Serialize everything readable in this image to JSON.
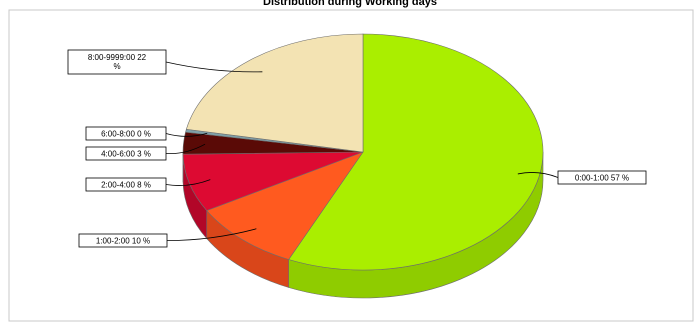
{
  "chart_data": {
    "type": "pie",
    "title": "Distribution during Working days",
    "slices": [
      {
        "label": "0:00-1:00",
        "percent_label": "57 %",
        "value": 57,
        "color": "#aaee00",
        "side": "#8fcc00"
      },
      {
        "label": "1:00-2:00",
        "percent_label": "10 %",
        "value": 10,
        "color": "#ff5a1f",
        "side": "#d9461a"
      },
      {
        "label": "2:00-4:00",
        "percent_label": "8 %",
        "value": 8,
        "color": "#dd0a32",
        "side": "#b20628"
      },
      {
        "label": "4:00-6:00",
        "percent_label": "3 %",
        "value": 3,
        "color": "#5a0a06",
        "side": "#3a0604"
      },
      {
        "label": "6:00-8:00",
        "percent_label": "0 %",
        "value": 0.4,
        "color": "#7fa0a8",
        "side": "#5f8088"
      },
      {
        "label": "8:00-9999:00",
        "percent_label": "22 %",
        "value": 22,
        "color": "#f3e3b3",
        "side": "#d8c796"
      }
    ]
  }
}
